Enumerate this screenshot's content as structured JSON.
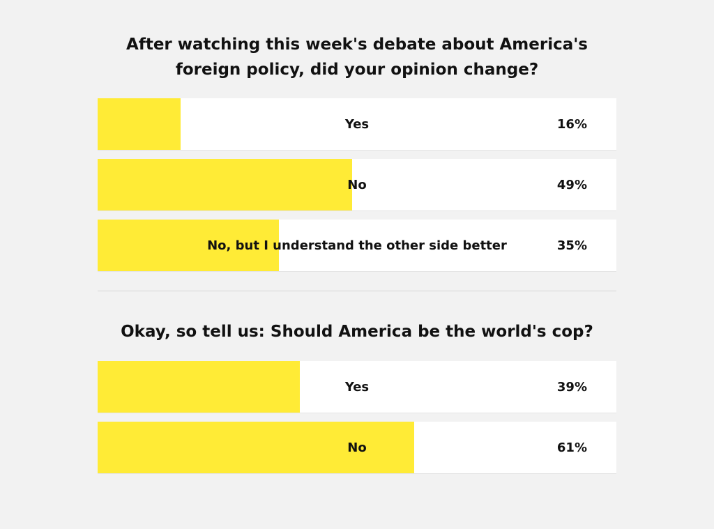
{
  "colors": {
    "background": "#f2f2f2",
    "bar_fill": "#ffeb36",
    "option_background": "#ffffff"
  },
  "polls": [
    {
      "question": "After watching this week's debate about America's foreign policy, did your opinion change?",
      "options": [
        {
          "label": "Yes",
          "percent_text": "16%",
          "value": 16
        },
        {
          "label": "No",
          "percent_text": "49%",
          "value": 49
        },
        {
          "label": "No, but I understand the other side better",
          "percent_text": "35%",
          "value": 35
        }
      ]
    },
    {
      "question": "Okay, so tell us: Should America be the world's cop?",
      "options": [
        {
          "label": "Yes",
          "percent_text": "39%",
          "value": 39
        },
        {
          "label": "No",
          "percent_text": "61%",
          "value": 61
        }
      ]
    }
  ]
}
